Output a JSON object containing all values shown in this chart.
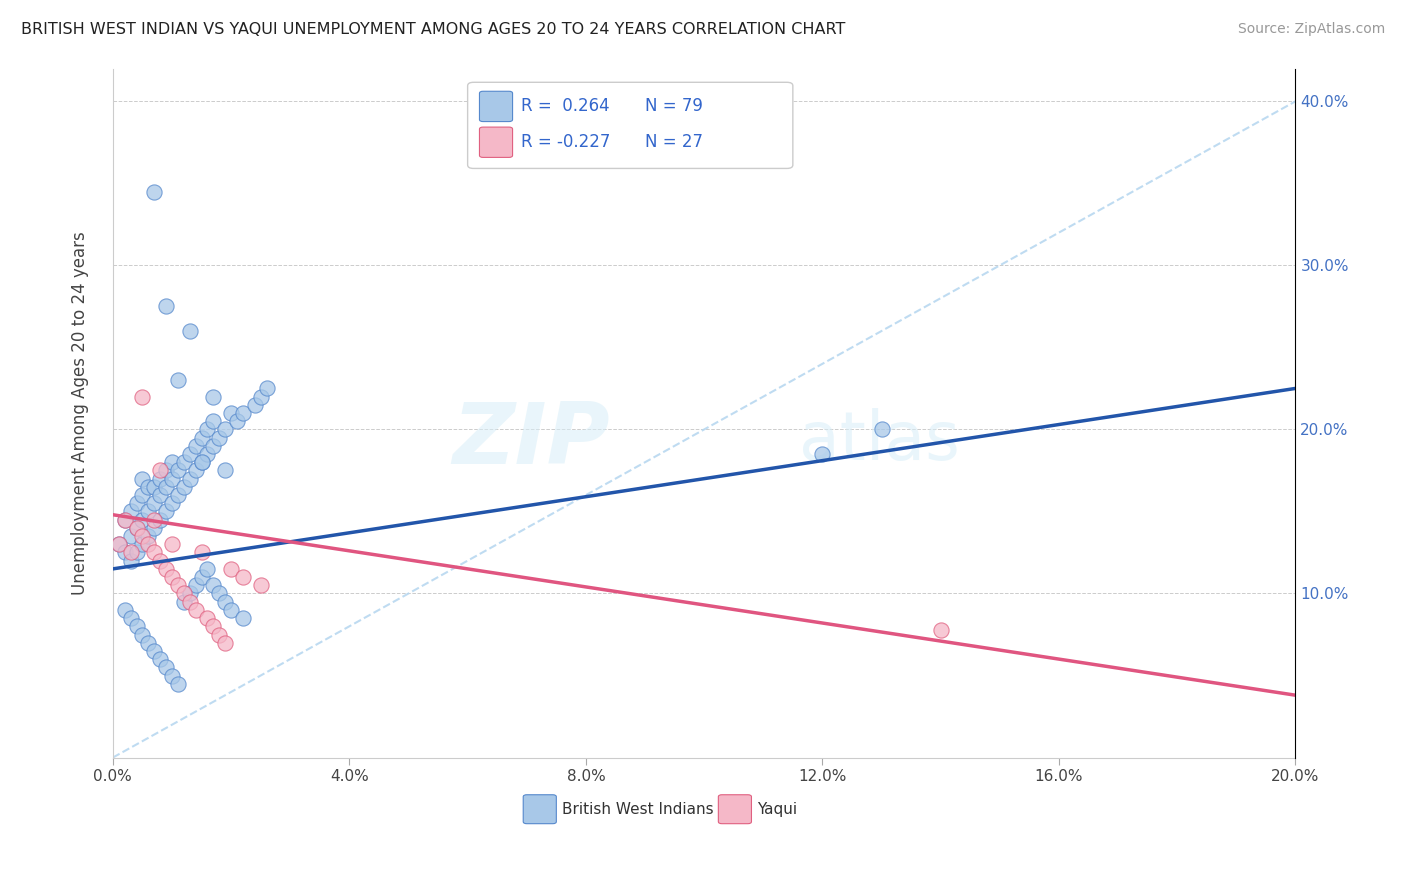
{
  "title": "BRITISH WEST INDIAN VS YAQUI UNEMPLOYMENT AMONG AGES 20 TO 24 YEARS CORRELATION CHART",
  "source": "Source: ZipAtlas.com",
  "ylabel": "Unemployment Among Ages 20 to 24 years",
  "xlim": [
    0.0,
    0.2
  ],
  "ylim": [
    0.0,
    0.42
  ],
  "xticks": [
    0.0,
    0.04,
    0.08,
    0.12,
    0.16,
    0.2
  ],
  "yticks": [
    0.0,
    0.1,
    0.2,
    0.3,
    0.4
  ],
  "xtick_labels": [
    "0.0%",
    "4.0%",
    "8.0%",
    "12.0%",
    "16.0%",
    "20.0%"
  ],
  "ytick_labels_right": [
    "",
    "10.0%",
    "20.0%",
    "30.0%",
    "40.0%"
  ],
  "blue_fill": "#a8c8e8",
  "blue_edge": "#5588cc",
  "pink_fill": "#f5b8c8",
  "pink_edge": "#e06080",
  "blue_line": "#2255aa",
  "pink_line": "#e05580",
  "dash_line": "#b8d8f0",
  "legend_label1": "British West Indians",
  "legend_label2": "Yaqui",
  "watermark": "ZIPatlas",
  "watermark_zip": "ZIP",
  "watermark_atlas": "atlas",
  "blue_trend_x0": 0.0,
  "blue_trend_y0": 0.115,
  "blue_trend_x1": 0.2,
  "blue_trend_y1": 0.225,
  "pink_trend_x0": 0.0,
  "pink_trend_y0": 0.148,
  "pink_trend_x1": 0.2,
  "pink_trend_y1": 0.038,
  "dash_trend_x0": 0.0,
  "dash_trend_y0": 0.0,
  "dash_trend_x1": 0.2,
  "dash_trend_y1": 0.4,
  "bwi_x": [
    0.001,
    0.002,
    0.002,
    0.003,
    0.003,
    0.003,
    0.004,
    0.004,
    0.004,
    0.005,
    0.005,
    0.005,
    0.005,
    0.006,
    0.006,
    0.006,
    0.007,
    0.007,
    0.007,
    0.008,
    0.008,
    0.008,
    0.009,
    0.009,
    0.009,
    0.01,
    0.01,
    0.01,
    0.011,
    0.011,
    0.012,
    0.012,
    0.013,
    0.013,
    0.014,
    0.014,
    0.015,
    0.015,
    0.016,
    0.016,
    0.017,
    0.017,
    0.018,
    0.019,
    0.02,
    0.021,
    0.022,
    0.024,
    0.025,
    0.026,
    0.002,
    0.003,
    0.004,
    0.005,
    0.006,
    0.007,
    0.008,
    0.009,
    0.01,
    0.011,
    0.012,
    0.013,
    0.014,
    0.015,
    0.016,
    0.017,
    0.018,
    0.019,
    0.02,
    0.022,
    0.007,
    0.009,
    0.011,
    0.013,
    0.015,
    0.017,
    0.019,
    0.12,
    0.13
  ],
  "bwi_y": [
    0.13,
    0.125,
    0.145,
    0.12,
    0.135,
    0.15,
    0.125,
    0.14,
    0.155,
    0.13,
    0.145,
    0.16,
    0.17,
    0.135,
    0.15,
    0.165,
    0.14,
    0.155,
    0.165,
    0.145,
    0.16,
    0.17,
    0.15,
    0.165,
    0.175,
    0.155,
    0.17,
    0.18,
    0.16,
    0.175,
    0.165,
    0.18,
    0.17,
    0.185,
    0.175,
    0.19,
    0.18,
    0.195,
    0.185,
    0.2,
    0.19,
    0.205,
    0.195,
    0.2,
    0.21,
    0.205,
    0.21,
    0.215,
    0.22,
    0.225,
    0.09,
    0.085,
    0.08,
    0.075,
    0.07,
    0.065,
    0.06,
    0.055,
    0.05,
    0.045,
    0.095,
    0.1,
    0.105,
    0.11,
    0.115,
    0.105,
    0.1,
    0.095,
    0.09,
    0.085,
    0.345,
    0.275,
    0.23,
    0.26,
    0.18,
    0.22,
    0.175,
    0.185,
    0.2
  ],
  "yaqui_x": [
    0.001,
    0.002,
    0.003,
    0.004,
    0.005,
    0.005,
    0.006,
    0.007,
    0.007,
    0.008,
    0.008,
    0.009,
    0.01,
    0.01,
    0.011,
    0.012,
    0.013,
    0.014,
    0.015,
    0.016,
    0.017,
    0.018,
    0.019,
    0.02,
    0.022,
    0.025,
    0.14
  ],
  "yaqui_y": [
    0.13,
    0.145,
    0.125,
    0.14,
    0.135,
    0.22,
    0.13,
    0.125,
    0.145,
    0.12,
    0.175,
    0.115,
    0.11,
    0.13,
    0.105,
    0.1,
    0.095,
    0.09,
    0.125,
    0.085,
    0.08,
    0.075,
    0.07,
    0.115,
    0.11,
    0.105,
    0.078
  ]
}
